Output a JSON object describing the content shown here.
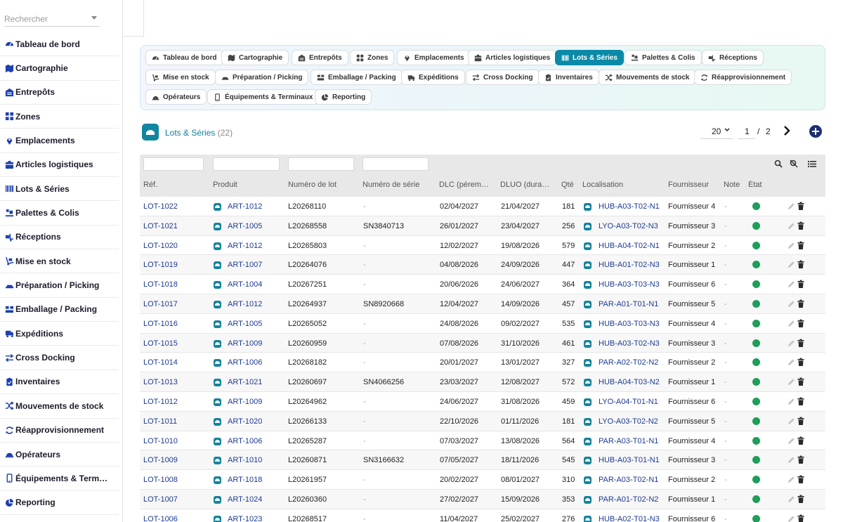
{
  "sidebar": {
    "search_placeholder": "Rechercher",
    "items": [
      {
        "label": "Tableau de bord",
        "icon": "dashboard-icon"
      },
      {
        "label": "Cartographie",
        "icon": "map-icon"
      },
      {
        "label": "Entrepôts",
        "icon": "warehouse-icon"
      },
      {
        "label": "Zones",
        "icon": "grid-icon"
      },
      {
        "label": "Emplacements",
        "icon": "location-pin-icon"
      },
      {
        "label": "Articles logistiques",
        "icon": "box-icon"
      },
      {
        "label": "Lots & Séries",
        "icon": "barcode-icon"
      },
      {
        "label": "Palettes & Colis",
        "icon": "pallet-icon"
      },
      {
        "label": "Réceptions",
        "icon": "truck-loading-icon"
      },
      {
        "label": "Mise en stock",
        "icon": "dolly-icon"
      },
      {
        "label": "Préparation / Picking",
        "icon": "forklift-icon"
      },
      {
        "label": "Emballage / Packing",
        "icon": "package-icon"
      },
      {
        "label": "Expéditions",
        "icon": "truck-icon"
      },
      {
        "label": "Cross Docking",
        "icon": "exchange-icon"
      },
      {
        "label": "Inventaires",
        "icon": "clipboard-icon"
      },
      {
        "label": "Mouvements de stock",
        "icon": "shuffle-icon"
      },
      {
        "label": "Réapprovisionnement",
        "icon": "sync-icon"
      },
      {
        "label": "Opérateurs",
        "icon": "hard-hat-icon"
      },
      {
        "label": "Équipements & Term…",
        "icon": "mobile-icon"
      },
      {
        "label": "Reporting",
        "icon": "pie-chart-icon"
      }
    ]
  },
  "tabs": [
    {
      "label": "Tableau de bord",
      "icon": "dashboard-icon",
      "active": false
    },
    {
      "label": "Cartographie",
      "icon": "map-icon",
      "active": false
    },
    {
      "label": "Entrepôts",
      "icon": "warehouse-icon",
      "active": false
    },
    {
      "label": "Zones",
      "icon": "grid-icon",
      "active": false
    },
    {
      "label": "Emplacements",
      "icon": "location-pin-icon",
      "active": false
    },
    {
      "label": "Articles logistiques",
      "icon": "box-icon",
      "active": false
    },
    {
      "label": "Lots & Séries",
      "icon": "barcode-icon",
      "active": true
    },
    {
      "label": "Palettes & Colis",
      "icon": "pallet-icon",
      "active": false
    },
    {
      "label": "Réceptions",
      "icon": "truck-loading-icon",
      "active": false
    },
    {
      "label": "Mise en stock",
      "icon": "dolly-icon",
      "active": false
    },
    {
      "label": "Préparation / Picking",
      "icon": "forklift-icon",
      "active": false
    },
    {
      "label": "Emballage / Packing",
      "icon": "package-icon",
      "active": false
    },
    {
      "label": "Expéditions",
      "icon": "truck-icon",
      "active": false
    },
    {
      "label": "Cross Docking",
      "icon": "exchange-icon",
      "active": false
    },
    {
      "label": "Inventaires",
      "icon": "clipboard-icon",
      "active": false
    },
    {
      "label": "Mouvements de stock",
      "icon": "shuffle-icon",
      "active": false
    },
    {
      "label": "Réapprovisionnement",
      "icon": "sync-icon",
      "active": false
    },
    {
      "label": "Opérateurs",
      "icon": "hard-hat-icon",
      "active": false
    },
    {
      "label": "Équipements & Terminaux",
      "icon": "mobile-icon",
      "active": false
    },
    {
      "label": "Reporting",
      "icon": "pie-chart-icon",
      "active": false
    }
  ],
  "header": {
    "title": "Lots & Séries",
    "count": "(22)",
    "per_page": "20",
    "page": "1",
    "page_sep": "/",
    "total_pages": "2"
  },
  "columns": [
    "Réf.",
    "Produit",
    "Numéro de lot",
    "Numéro de série",
    "DLC (pérem…",
    "DLUO (dura…",
    "Qté",
    "Localisation",
    "Fournisseur",
    "Note",
    "État"
  ],
  "rows": [
    {
      "ref": "LOT-1022",
      "produit": "ART-1012",
      "lot": "L20268110",
      "serie": "-",
      "dlc": "02/04/2027",
      "dluo": "21/04/2027",
      "qte": "181",
      "loc": "HUB-A03-T02-N1",
      "fournisseur": "Fournisseur 4",
      "note": "-"
    },
    {
      "ref": "LOT-1021",
      "produit": "ART-1005",
      "lot": "L20268558",
      "serie": "SN3840713",
      "dlc": "26/01/2027",
      "dluo": "23/04/2027",
      "qte": "256",
      "loc": "LYO-A03-T02-N3",
      "fournisseur": "Fournisseur 3",
      "note": "-"
    },
    {
      "ref": "LOT-1020",
      "produit": "ART-1012",
      "lot": "L20265803",
      "serie": "-",
      "dlc": "12/02/2027",
      "dluo": "19/08/2026",
      "qte": "579",
      "loc": "HUB-A04-T02-N1",
      "fournisseur": "Fournisseur 2",
      "note": "-"
    },
    {
      "ref": "LOT-1019",
      "produit": "ART-1007",
      "lot": "L20264076",
      "serie": "-",
      "dlc": "04/08/2026",
      "dluo": "24/09/2026",
      "qte": "447",
      "loc": "HUB-A01-T02-N3",
      "fournisseur": "Fournisseur 1",
      "note": "-"
    },
    {
      "ref": "LOT-1018",
      "produit": "ART-1004",
      "lot": "L20267251",
      "serie": "-",
      "dlc": "20/06/2026",
      "dluo": "24/06/2027",
      "qte": "364",
      "loc": "HUB-A03-T03-N3",
      "fournisseur": "Fournisseur 6",
      "note": "-"
    },
    {
      "ref": "LOT-1017",
      "produit": "ART-1012",
      "lot": "L20264937",
      "serie": "SN8920668",
      "dlc": "12/04/2027",
      "dluo": "14/09/2026",
      "qte": "457",
      "loc": "PAR-A01-T01-N1",
      "fournisseur": "Fournisseur 5",
      "note": "-"
    },
    {
      "ref": "LOT-1016",
      "produit": "ART-1005",
      "lot": "L20265052",
      "serie": "-",
      "dlc": "24/08/2026",
      "dluo": "09/02/2027",
      "qte": "535",
      "loc": "HUB-A03-T03-N3",
      "fournisseur": "Fournisseur 4",
      "note": "-"
    },
    {
      "ref": "LOT-1015",
      "produit": "ART-1009",
      "lot": "L20260959",
      "serie": "-",
      "dlc": "07/08/2026",
      "dluo": "31/10/2026",
      "qte": "461",
      "loc": "HUB-A03-T02-N3",
      "fournisseur": "Fournisseur 3",
      "note": "-"
    },
    {
      "ref": "LOT-1014",
      "produit": "ART-1006",
      "lot": "L20268182",
      "serie": "-",
      "dlc": "20/01/2027",
      "dluo": "13/01/2027",
      "qte": "327",
      "loc": "PAR-A02-T02-N2",
      "fournisseur": "Fournisseur 2",
      "note": "-"
    },
    {
      "ref": "LOT-1013",
      "produit": "ART-1021",
      "lot": "L20260697",
      "serie": "SN4066256",
      "dlc": "23/03/2027",
      "dluo": "12/08/2027",
      "qte": "572",
      "loc": "HUB-A04-T03-N2",
      "fournisseur": "Fournisseur 1",
      "note": "-"
    },
    {
      "ref": "LOT-1012",
      "produit": "ART-1009",
      "lot": "L20264962",
      "serie": "-",
      "dlc": "24/06/2027",
      "dluo": "31/08/2026",
      "qte": "459",
      "loc": "LYO-A04-T01-N1",
      "fournisseur": "Fournisseur 6",
      "note": "-"
    },
    {
      "ref": "LOT-1011",
      "produit": "ART-1020",
      "lot": "L20266133",
      "serie": "-",
      "dlc": "22/10/2026",
      "dluo": "01/11/2026",
      "qte": "181",
      "loc": "LYO-A03-T02-N2",
      "fournisseur": "Fournisseur 5",
      "note": "-"
    },
    {
      "ref": "LOT-1010",
      "produit": "ART-1006",
      "lot": "L20265287",
      "serie": "-",
      "dlc": "07/03/2027",
      "dluo": "13/08/2026",
      "qte": "564",
      "loc": "PAR-A03-T01-N1",
      "fournisseur": "Fournisseur 4",
      "note": "-"
    },
    {
      "ref": "LOT-1009",
      "produit": "ART-1010",
      "lot": "L20260871",
      "serie": "SN3166632",
      "dlc": "07/05/2027",
      "dluo": "18/11/2026",
      "qte": "545",
      "loc": "HUB-A03-T01-N1",
      "fournisseur": "Fournisseur 3",
      "note": "-"
    },
    {
      "ref": "LOT-1008",
      "produit": "ART-1018",
      "lot": "L20261957",
      "serie": "-",
      "dlc": "20/02/2027",
      "dluo": "08/01/2027",
      "qte": "310",
      "loc": "PAR-A03-T02-N1",
      "fournisseur": "Fournisseur 2",
      "note": "-"
    },
    {
      "ref": "LOT-1007",
      "produit": "ART-1024",
      "lot": "L20260360",
      "serie": "-",
      "dlc": "27/02/2027",
      "dluo": "15/09/2026",
      "qte": "353",
      "loc": "PAR-A01-T02-N2",
      "fournisseur": "Fournisseur 1",
      "note": "-"
    },
    {
      "ref": "LOT-1006",
      "produit": "ART-1023",
      "lot": "L20268517",
      "serie": "-",
      "dlc": "11/04/2027",
      "dluo": "25/02/2027",
      "qte": "276",
      "loc": "HUB-A02-T01-N3",
      "fournisseur": "Fournisseur 6",
      "note": "-"
    }
  ],
  "colors": {
    "accent": "#0b8aa8",
    "link": "#1d3b91",
    "status_ok": "#1f9d5a",
    "add_button": "#1d2e72"
  }
}
